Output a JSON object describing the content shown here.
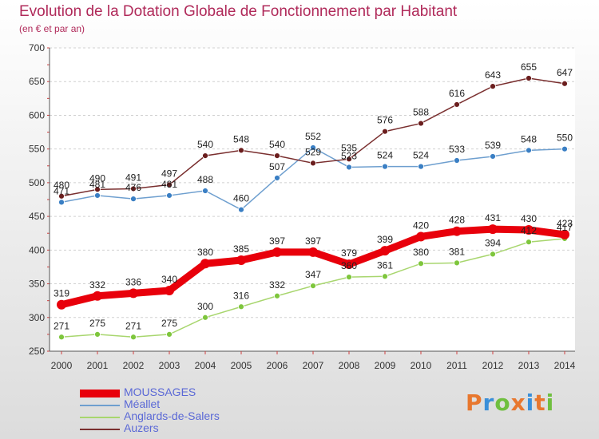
{
  "header": {
    "title": "Evolution de la Dotation Globale de Fonctionnement par Habitant",
    "subtitle": "(en € et par an)"
  },
  "logo": {
    "text": "Proxiti",
    "colors": [
      "#e8772e",
      "#3a8fd9",
      "#6fbf3f",
      "#e8772e",
      "#3a8fd9",
      "#e8772e",
      "#6fbf3f"
    ]
  },
  "chart_data": {
    "type": "line",
    "title": "Evolution de la Dotation Globale de Fonctionnement par Habitant",
    "subtitle": "(en € et par an)",
    "xlabel": "",
    "ylabel": "",
    "x": [
      "2000",
      "2001",
      "2002",
      "2003",
      "2004",
      "2005",
      "2006",
      "2007",
      "2008",
      "2009",
      "2010",
      "2011",
      "2012",
      "2013",
      "2014"
    ],
    "ylim": [
      250,
      700
    ],
    "yticks": [
      250,
      300,
      350,
      400,
      450,
      500,
      550,
      600,
      650,
      700
    ],
    "grid": "horizontal dashed",
    "legend_position": "bottom-left",
    "series": [
      {
        "name": "MOUSSAGES",
        "color": "#e8000b",
        "thick": true,
        "values": [
          319,
          332,
          336,
          340,
          380,
          385,
          397,
          397,
          379,
          399,
          420,
          428,
          431,
          430,
          423
        ]
      },
      {
        "name": "Méallet",
        "color": "#6e9fcf",
        "marker": "#3a7fc4",
        "values": [
          471,
          481,
          476,
          481,
          488,
          460,
          507,
          552,
          523,
          524,
          524,
          533,
          539,
          548,
          550
        ]
      },
      {
        "name": "Anglards-de-Salers",
        "color": "#a8d66e",
        "marker": "#7ec63c",
        "values": [
          271,
          275,
          271,
          275,
          300,
          316,
          332,
          347,
          360,
          361,
          380,
          381,
          394,
          412,
          417
        ]
      },
      {
        "name": "Auzers",
        "color": "#7a2f2f",
        "marker": "#6b1e1e",
        "values": [
          480,
          490,
          491,
          497,
          540,
          548,
          540,
          529,
          535,
          576,
          588,
          616,
          643,
          655,
          647
        ]
      }
    ]
  }
}
